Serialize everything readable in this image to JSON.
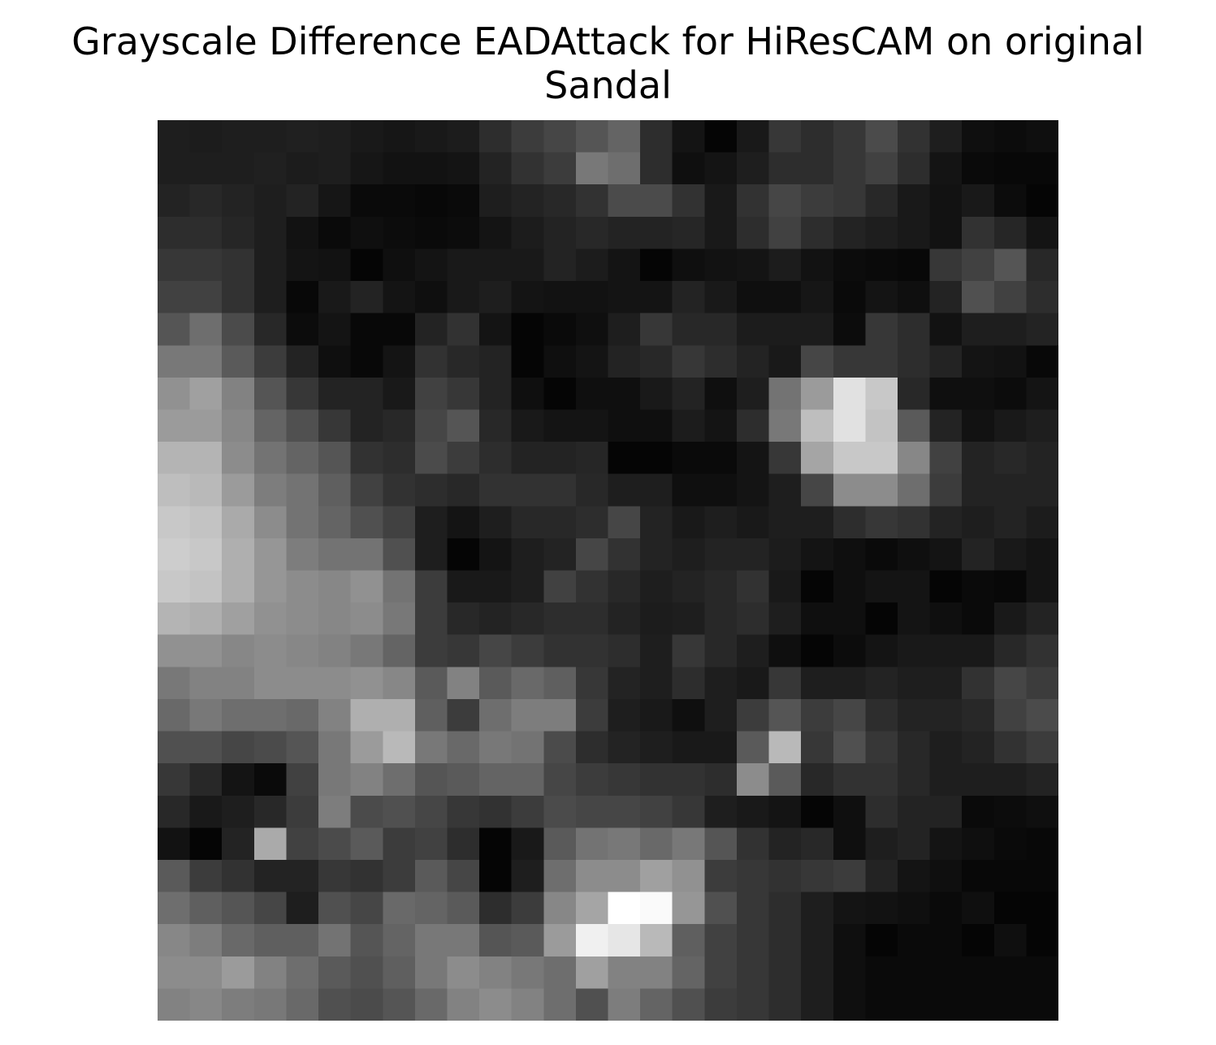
{
  "chart_data": {
    "type": "heatmap",
    "title_lines": [
      "Grayscale Difference EADAttack for HiResCAM on original",
      "Sandal"
    ],
    "colormap": "gray",
    "axes_visible": false,
    "grid": false,
    "rows": 28,
    "cols": 28,
    "value_range": [
      0,
      255
    ],
    "values": [
      [
        30,
        28,
        30,
        30,
        32,
        30,
        25,
        22,
        25,
        28,
        45,
        60,
        70,
        85,
        100,
        45,
        20,
        5,
        25,
        55,
        45,
        55,
        75,
        50,
        30,
        15,
        12,
        15
      ],
      [
        30,
        30,
        30,
        32,
        28,
        30,
        22,
        18,
        18,
        20,
        35,
        50,
        60,
        120,
        110,
        45,
        15,
        20,
        30,
        45,
        45,
        55,
        65,
        45,
        20,
        10,
        8,
        8
      ],
      [
        35,
        40,
        35,
        30,
        35,
        22,
        10,
        10,
        8,
        10,
        30,
        35,
        40,
        50,
        75,
        75,
        50,
        25,
        50,
        70,
        60,
        55,
        40,
        25,
        18,
        25,
        12,
        5
      ],
      [
        45,
        45,
        38,
        30,
        18,
        10,
        15,
        12,
        10,
        12,
        20,
        28,
        35,
        40,
        35,
        35,
        38,
        25,
        45,
        65,
        45,
        35,
        30,
        25,
        18,
        50,
        38,
        20
      ],
      [
        55,
        55,
        50,
        30,
        20,
        18,
        5,
        15,
        20,
        25,
        25,
        25,
        35,
        28,
        20,
        5,
        15,
        18,
        20,
        28,
        18,
        12,
        10,
        8,
        55,
        65,
        85,
        40
      ],
      [
        65,
        65,
        50,
        30,
        8,
        25,
        35,
        20,
        15,
        25,
        30,
        20,
        18,
        18,
        20,
        20,
        35,
        25,
        15,
        15,
        22,
        10,
        20,
        15,
        35,
        80,
        65,
        45
      ],
      [
        85,
        110,
        75,
        40,
        12,
        20,
        8,
        8,
        35,
        50,
        20,
        5,
        10,
        15,
        30,
        55,
        40,
        40,
        28,
        28,
        28,
        12,
        55,
        45,
        18,
        30,
        30,
        35
      ],
      [
        120,
        120,
        90,
        60,
        35,
        15,
        8,
        20,
        50,
        40,
        35,
        5,
        15,
        20,
        35,
        40,
        55,
        45,
        35,
        25,
        70,
        55,
        55,
        45,
        35,
        20,
        18,
        8
      ],
      [
        145,
        160,
        130,
        85,
        55,
        35,
        35,
        25,
        65,
        55,
        35,
        15,
        5,
        15,
        15,
        25,
        35,
        15,
        30,
        115,
        155,
        225,
        200,
        40,
        15,
        15,
        12,
        20
      ],
      [
        155,
        155,
        135,
        100,
        80,
        55,
        35,
        40,
        70,
        85,
        40,
        25,
        20,
        20,
        15,
        15,
        28,
        20,
        45,
        120,
        190,
        225,
        195,
        90,
        35,
        18,
        25,
        30
      ],
      [
        180,
        180,
        140,
        115,
        100,
        85,
        50,
        45,
        75,
        60,
        45,
        35,
        35,
        38,
        5,
        5,
        10,
        10,
        20,
        55,
        165,
        200,
        200,
        135,
        65,
        35,
        40,
        35
      ],
      [
        190,
        185,
        155,
        125,
        115,
        95,
        65,
        50,
        45,
        40,
        50,
        50,
        50,
        40,
        30,
        30,
        15,
        15,
        20,
        30,
        70,
        140,
        140,
        110,
        60,
        35,
        35,
        35
      ],
      [
        200,
        195,
        170,
        140,
        115,
        100,
        80,
        65,
        30,
        20,
        30,
        40,
        40,
        45,
        70,
        35,
        25,
        30,
        25,
        30,
        30,
        45,
        55,
        50,
        35,
        30,
        35,
        28
      ],
      [
        205,
        200,
        175,
        150,
        125,
        115,
        115,
        80,
        30,
        5,
        20,
        30,
        35,
        70,
        50,
        35,
        30,
        35,
        35,
        28,
        20,
        15,
        10,
        15,
        20,
        35,
        25,
        20
      ],
      [
        200,
        195,
        175,
        150,
        140,
        135,
        145,
        115,
        60,
        25,
        25,
        30,
        65,
        50,
        40,
        30,
        35,
        40,
        50,
        25,
        5,
        15,
        20,
        20,
        5,
        10,
        8,
        20
      ],
      [
        180,
        175,
        160,
        145,
        140,
        135,
        140,
        120,
        60,
        40,
        35,
        40,
        45,
        45,
        35,
        28,
        30,
        40,
        45,
        30,
        15,
        15,
        5,
        20,
        15,
        10,
        25,
        35
      ],
      [
        145,
        145,
        135,
        140,
        135,
        130,
        120,
        100,
        60,
        55,
        70,
        60,
        50,
        50,
        45,
        30,
        55,
        40,
        30,
        15,
        5,
        12,
        20,
        25,
        25,
        25,
        40,
        50
      ],
      [
        120,
        130,
        130,
        140,
        140,
        140,
        145,
        135,
        90,
        130,
        90,
        105,
        95,
        55,
        35,
        30,
        45,
        30,
        25,
        55,
        30,
        30,
        35,
        30,
        30,
        50,
        70,
        60
      ],
      [
        105,
        120,
        110,
        110,
        105,
        130,
        175,
        175,
        95,
        60,
        110,
        125,
        125,
        60,
        30,
        25,
        15,
        30,
        60,
        85,
        60,
        70,
        45,
        35,
        35,
        40,
        65,
        75
      ],
      [
        80,
        80,
        70,
        75,
        85,
        120,
        155,
        185,
        120,
        105,
        120,
        115,
        75,
        45,
        35,
        30,
        25,
        25,
        90,
        185,
        55,
        80,
        55,
        40,
        30,
        35,
        50,
        60
      ],
      [
        55,
        40,
        20,
        10,
        65,
        120,
        130,
        110,
        85,
        90,
        100,
        100,
        70,
        60,
        55,
        50,
        50,
        45,
        140,
        90,
        40,
        50,
        50,
        40,
        30,
        30,
        30,
        35
      ],
      [
        40,
        25,
        30,
        40,
        60,
        125,
        75,
        80,
        70,
        55,
        50,
        60,
        75,
        70,
        70,
        65,
        55,
        30,
        25,
        20,
        5,
        15,
        45,
        35,
        35,
        10,
        12,
        15
      ],
      [
        18,
        5,
        35,
        170,
        65,
        75,
        90,
        60,
        65,
        45,
        5,
        25,
        90,
        115,
        120,
        105,
        120,
        85,
        50,
        35,
        40,
        15,
        30,
        35,
        20,
        15,
        10,
        8
      ],
      [
        90,
        60,
        50,
        35,
        35,
        55,
        50,
        60,
        90,
        70,
        5,
        30,
        110,
        140,
        140,
        160,
        145,
        60,
        55,
        50,
        55,
        60,
        35,
        20,
        15,
        8,
        8,
        8
      ],
      [
        110,
        95,
        85,
        70,
        30,
        80,
        70,
        105,
        100,
        90,
        45,
        60,
        135,
        165,
        255,
        250,
        150,
        80,
        55,
        45,
        30,
        20,
        18,
        15,
        10,
        15,
        5,
        5
      ],
      [
        135,
        125,
        105,
        95,
        95,
        115,
        85,
        100,
        120,
        120,
        85,
        90,
        155,
        240,
        230,
        185,
        95,
        65,
        55,
        45,
        30,
        15,
        5,
        10,
        10,
        5,
        15,
        5
      ],
      [
        140,
        140,
        155,
        130,
        110,
        90,
        80,
        95,
        120,
        140,
        130,
        120,
        110,
        160,
        130,
        130,
        100,
        65,
        55,
        45,
        30,
        15,
        10,
        10,
        10,
        10,
        10,
        10
      ],
      [
        130,
        135,
        125,
        120,
        105,
        80,
        75,
        85,
        105,
        130,
        140,
        130,
        110,
        80,
        125,
        100,
        80,
        60,
        55,
        45,
        30,
        15,
        10,
        10,
        10,
        10,
        10,
        10
      ]
    ]
  }
}
